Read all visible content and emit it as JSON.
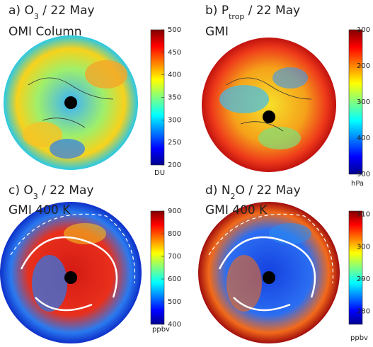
{
  "panels": [
    {
      "title": {
        "prefix": "a) O",
        "sub": "3",
        "suffix": " / 22 May"
      },
      "subtitle": "OMI Column",
      "colorbar": {
        "clim": [
          200,
          500
        ],
        "reverse": false,
        "ticks": [
          200,
          250,
          300,
          350,
          400,
          450,
          500
        ],
        "unit": "DU"
      }
    },
    {
      "title": {
        "prefix": "b) P",
        "sub": "trop",
        "suffix": " / 22 May"
      },
      "subtitle": "GMI",
      "colorbar": {
        "clim": [
          100,
          500
        ],
        "reverse": true,
        "ticks": [
          100,
          200,
          300,
          400,
          500
        ],
        "unit": "hPa"
      }
    },
    {
      "title": {
        "prefix": "c) O",
        "sub": "3",
        "suffix": " / 22 May"
      },
      "subtitle": "GMI 400 K",
      "colorbar": {
        "clim": [
          400,
          900
        ],
        "reverse": false,
        "ticks": [
          400,
          500,
          600,
          700,
          800,
          900
        ],
        "unit": "ppbv"
      }
    },
    {
      "title": {
        "prefix": "d) N",
        "sub": "2",
        "suffix": "O / 22 May"
      },
      "subtitle": "GMI 400 K",
      "colorbar": {
        "clim": [
          276,
          311
        ],
        "reverse": false,
        "ticks": [
          280,
          290,
          300,
          310
        ],
        "unit": "ppbv"
      }
    }
  ]
}
